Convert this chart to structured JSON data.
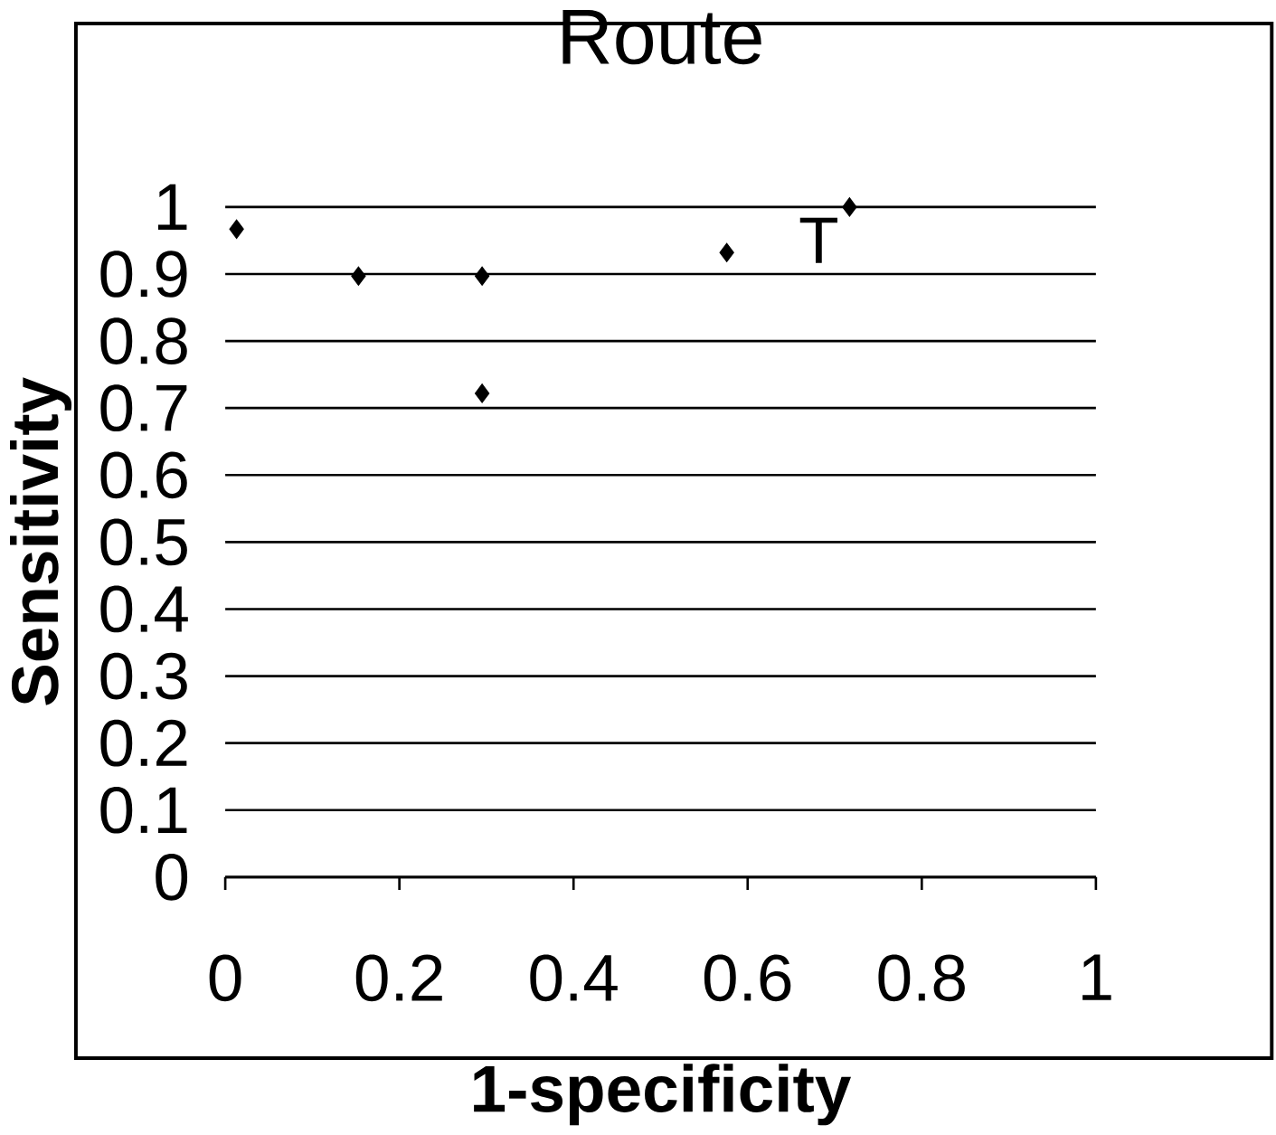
{
  "chart_data": {
    "type": "scatter",
    "title": "Route",
    "xlabel": "1-specificity",
    "ylabel": "Sensitivity",
    "x": [
      0.013,
      0.153,
      0.295,
      0.295,
      0.576,
      0.717
    ],
    "values": [
      0.967,
      0.897,
      0.897,
      0.722,
      0.932,
      1.0
    ],
    "color": "#000000",
    "marker": "diamond",
    "xlim": [
      0,
      1
    ],
    "ylim": [
      0,
      1
    ],
    "xticks": [
      0,
      0.2,
      0.4,
      0.6,
      0.8,
      1
    ],
    "yticks": [
      0,
      0.1,
      0.2,
      0.3,
      0.4,
      0.5,
      0.6,
      0.7,
      0.8,
      0.9,
      1
    ],
    "grid": "y",
    "annotations": [
      {
        "text": "T",
        "x": 0.717,
        "y": 1.0
      }
    ]
  }
}
